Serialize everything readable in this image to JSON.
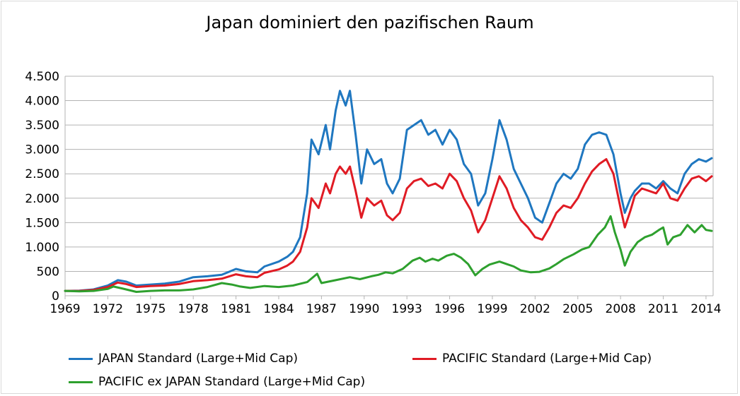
{
  "chart_data": {
    "type": "line",
    "title": "Japan dominiert den pazifischen Raum",
    "xlabel": "",
    "ylabel": "",
    "xlim": [
      1969,
      2014.5
    ],
    "ylim": [
      0,
      4500
    ],
    "y_ticks": [
      0,
      500,
      1000,
      1500,
      2000,
      2500,
      3000,
      3500,
      4000,
      4500
    ],
    "y_tick_labels": [
      "0",
      "500",
      "1.000",
      "1.500",
      "2.000",
      "2.500",
      "3.000",
      "3.500",
      "4.000",
      "4.500"
    ],
    "x_ticks": [
      1969,
      1972,
      1975,
      1978,
      1981,
      1984,
      1987,
      1990,
      1993,
      1996,
      1999,
      2002,
      2005,
      2008,
      2011,
      2014
    ],
    "x_tick_labels": [
      "1969",
      "1972",
      "1975",
      "1978",
      "1981",
      "1984",
      "1987",
      "1990",
      "1993",
      "1996",
      "1999",
      "2002",
      "2005",
      "2008",
      "2011",
      "2014"
    ],
    "grid": "horizontal",
    "legend_position": "bottom",
    "series": [
      {
        "name": "JAPAN Standard (Large+Mid Cap)",
        "color": "#1f77c0",
        "points": [
          [
            1969.0,
            100
          ],
          [
            1970.0,
            105
          ],
          [
            1971.0,
            130
          ],
          [
            1972.0,
            210
          ],
          [
            1972.7,
            320
          ],
          [
            1973.3,
            290
          ],
          [
            1974.0,
            210
          ],
          [
            1975.0,
            230
          ],
          [
            1976.0,
            250
          ],
          [
            1977.0,
            290
          ],
          [
            1978.0,
            380
          ],
          [
            1979.0,
            400
          ],
          [
            1980.0,
            430
          ],
          [
            1981.0,
            550
          ],
          [
            1981.7,
            500
          ],
          [
            1982.5,
            480
          ],
          [
            1983.0,
            600
          ],
          [
            1984.0,
            700
          ],
          [
            1984.6,
            800
          ],
          [
            1985.0,
            900
          ],
          [
            1985.5,
            1200
          ],
          [
            1986.0,
            2100
          ],
          [
            1986.3,
            3200
          ],
          [
            1986.8,
            2900
          ],
          [
            1987.3,
            3500
          ],
          [
            1987.6,
            3000
          ],
          [
            1988.0,
            3800
          ],
          [
            1988.3,
            4200
          ],
          [
            1988.7,
            3900
          ],
          [
            1989.0,
            4200
          ],
          [
            1989.4,
            3300
          ],
          [
            1989.8,
            2300
          ],
          [
            1990.2,
            3000
          ],
          [
            1990.7,
            2700
          ],
          [
            1991.2,
            2800
          ],
          [
            1991.6,
            2300
          ],
          [
            1992.0,
            2100
          ],
          [
            1992.5,
            2400
          ],
          [
            1993.0,
            3400
          ],
          [
            1993.5,
            3500
          ],
          [
            1994.0,
            3600
          ],
          [
            1994.5,
            3300
          ],
          [
            1995.0,
            3400
          ],
          [
            1995.5,
            3100
          ],
          [
            1996.0,
            3400
          ],
          [
            1996.5,
            3200
          ],
          [
            1997.0,
            2700
          ],
          [
            1997.5,
            2500
          ],
          [
            1998.0,
            1850
          ],
          [
            1998.5,
            2100
          ],
          [
            1999.0,
            2800
          ],
          [
            1999.5,
            3600
          ],
          [
            2000.0,
            3200
          ],
          [
            2000.5,
            2600
          ],
          [
            2001.0,
            2300
          ],
          [
            2001.5,
            2000
          ],
          [
            2002.0,
            1600
          ],
          [
            2002.5,
            1500
          ],
          [
            2003.0,
            1900
          ],
          [
            2003.5,
            2300
          ],
          [
            2004.0,
            2500
          ],
          [
            2004.5,
            2400
          ],
          [
            2005.0,
            2600
          ],
          [
            2005.5,
            3100
          ],
          [
            2006.0,
            3300
          ],
          [
            2006.5,
            3350
          ],
          [
            2007.0,
            3300
          ],
          [
            2007.5,
            2900
          ],
          [
            2008.0,
            2100
          ],
          [
            2008.3,
            1700
          ],
          [
            2008.7,
            2000
          ],
          [
            2009.0,
            2150
          ],
          [
            2009.5,
            2300
          ],
          [
            2010.0,
            2300
          ],
          [
            2010.5,
            2200
          ],
          [
            2011.0,
            2350
          ],
          [
            2011.5,
            2200
          ],
          [
            2012.0,
            2100
          ],
          [
            2012.5,
            2500
          ],
          [
            2013.0,
            2700
          ],
          [
            2013.5,
            2800
          ],
          [
            2014.0,
            2750
          ],
          [
            2014.4,
            2820
          ]
        ]
      },
      {
        "name": "PACIFIC Standard (Large+Mid Cap)",
        "color": "#e01b24",
        "points": [
          [
            1969.0,
            100
          ],
          [
            1970.0,
            100
          ],
          [
            1971.0,
            120
          ],
          [
            1972.0,
            180
          ],
          [
            1972.7,
            270
          ],
          [
            1973.3,
            240
          ],
          [
            1974.0,
            180
          ],
          [
            1975.0,
            200
          ],
          [
            1976.0,
            210
          ],
          [
            1977.0,
            240
          ],
          [
            1978.0,
            300
          ],
          [
            1979.0,
            320
          ],
          [
            1980.0,
            350
          ],
          [
            1981.0,
            440
          ],
          [
            1981.7,
            400
          ],
          [
            1982.5,
            380
          ],
          [
            1983.0,
            470
          ],
          [
            1984.0,
            540
          ],
          [
            1984.6,
            620
          ],
          [
            1985.0,
            700
          ],
          [
            1985.5,
            900
          ],
          [
            1986.0,
            1400
          ],
          [
            1986.3,
            2000
          ],
          [
            1986.8,
            1800
          ],
          [
            1987.3,
            2300
          ],
          [
            1987.6,
            2100
          ],
          [
            1988.0,
            2500
          ],
          [
            1988.3,
            2650
          ],
          [
            1988.7,
            2500
          ],
          [
            1989.0,
            2650
          ],
          [
            1989.4,
            2150
          ],
          [
            1989.8,
            1600
          ],
          [
            1990.2,
            2000
          ],
          [
            1990.7,
            1850
          ],
          [
            1991.2,
            1950
          ],
          [
            1991.6,
            1650
          ],
          [
            1992.0,
            1550
          ],
          [
            1992.5,
            1700
          ],
          [
            1993.0,
            2200
          ],
          [
            1993.5,
            2350
          ],
          [
            1994.0,
            2400
          ],
          [
            1994.5,
            2250
          ],
          [
            1995.0,
            2300
          ],
          [
            1995.5,
            2200
          ],
          [
            1996.0,
            2500
          ],
          [
            1996.5,
            2350
          ],
          [
            1997.0,
            2000
          ],
          [
            1997.5,
            1750
          ],
          [
            1998.0,
            1300
          ],
          [
            1998.5,
            1550
          ],
          [
            1999.0,
            2000
          ],
          [
            1999.5,
            2450
          ],
          [
            2000.0,
            2200
          ],
          [
            2000.5,
            1800
          ],
          [
            2001.0,
            1550
          ],
          [
            2001.5,
            1400
          ],
          [
            2002.0,
            1200
          ],
          [
            2002.5,
            1150
          ],
          [
            2003.0,
            1400
          ],
          [
            2003.5,
            1700
          ],
          [
            2004.0,
            1850
          ],
          [
            2004.5,
            1800
          ],
          [
            2005.0,
            2000
          ],
          [
            2005.5,
            2300
          ],
          [
            2006.0,
            2550
          ],
          [
            2006.5,
            2700
          ],
          [
            2007.0,
            2800
          ],
          [
            2007.5,
            2500
          ],
          [
            2008.0,
            1800
          ],
          [
            2008.3,
            1400
          ],
          [
            2008.7,
            1750
          ],
          [
            2009.0,
            2050
          ],
          [
            2009.5,
            2200
          ],
          [
            2010.0,
            2150
          ],
          [
            2010.5,
            2100
          ],
          [
            2011.0,
            2300
          ],
          [
            2011.5,
            2000
          ],
          [
            2012.0,
            1950
          ],
          [
            2012.5,
            2200
          ],
          [
            2013.0,
            2400
          ],
          [
            2013.5,
            2450
          ],
          [
            2014.0,
            2350
          ],
          [
            2014.4,
            2450
          ]
        ]
      },
      {
        "name": "PACIFIC ex JAPAN Standard (Large+Mid Cap)",
        "color": "#2ea02e",
        "points": [
          [
            1969.0,
            100
          ],
          [
            1970.0,
            90
          ],
          [
            1971.0,
            100
          ],
          [
            1972.0,
            140
          ],
          [
            1972.4,
            190
          ],
          [
            1973.0,
            150
          ],
          [
            1974.0,
            80
          ],
          [
            1975.0,
            100
          ],
          [
            1976.0,
            110
          ],
          [
            1977.0,
            110
          ],
          [
            1978.0,
            130
          ],
          [
            1979.0,
            180
          ],
          [
            1980.0,
            260
          ],
          [
            1980.7,
            230
          ],
          [
            1981.3,
            190
          ],
          [
            1982.0,
            160
          ],
          [
            1983.0,
            200
          ],
          [
            1984.0,
            180
          ],
          [
            1985.0,
            210
          ],
          [
            1986.0,
            280
          ],
          [
            1986.7,
            450
          ],
          [
            1987.0,
            260
          ],
          [
            1988.0,
            320
          ],
          [
            1989.0,
            380
          ],
          [
            1989.7,
            340
          ],
          [
            1990.5,
            400
          ],
          [
            1991.0,
            430
          ],
          [
            1991.5,
            480
          ],
          [
            1992.0,
            460
          ],
          [
            1992.7,
            550
          ],
          [
            1993.4,
            720
          ],
          [
            1993.9,
            780
          ],
          [
            1994.3,
            700
          ],
          [
            1994.8,
            760
          ],
          [
            1995.2,
            720
          ],
          [
            1995.8,
            820
          ],
          [
            1996.3,
            860
          ],
          [
            1996.8,
            780
          ],
          [
            1997.3,
            650
          ],
          [
            1997.8,
            420
          ],
          [
            1998.3,
            550
          ],
          [
            1998.8,
            640
          ],
          [
            1999.5,
            700
          ],
          [
            2000.0,
            650
          ],
          [
            2000.5,
            600
          ],
          [
            2001.0,
            520
          ],
          [
            2001.7,
            480
          ],
          [
            2002.3,
            490
          ],
          [
            2003.0,
            560
          ],
          [
            2003.5,
            650
          ],
          [
            2004.0,
            750
          ],
          [
            2004.7,
            850
          ],
          [
            2005.3,
            950
          ],
          [
            2005.8,
            1000
          ],
          [
            2006.4,
            1250
          ],
          [
            2006.9,
            1400
          ],
          [
            2007.3,
            1630
          ],
          [
            2007.6,
            1300
          ],
          [
            2008.0,
            950
          ],
          [
            2008.3,
            620
          ],
          [
            2008.7,
            900
          ],
          [
            2009.2,
            1100
          ],
          [
            2009.7,
            1200
          ],
          [
            2010.2,
            1250
          ],
          [
            2010.7,
            1350
          ],
          [
            2011.0,
            1400
          ],
          [
            2011.3,
            1050
          ],
          [
            2011.7,
            1200
          ],
          [
            2012.2,
            1250
          ],
          [
            2012.7,
            1450
          ],
          [
            2013.2,
            1300
          ],
          [
            2013.7,
            1450
          ],
          [
            2014.0,
            1350
          ],
          [
            2014.4,
            1330
          ]
        ]
      }
    ]
  }
}
